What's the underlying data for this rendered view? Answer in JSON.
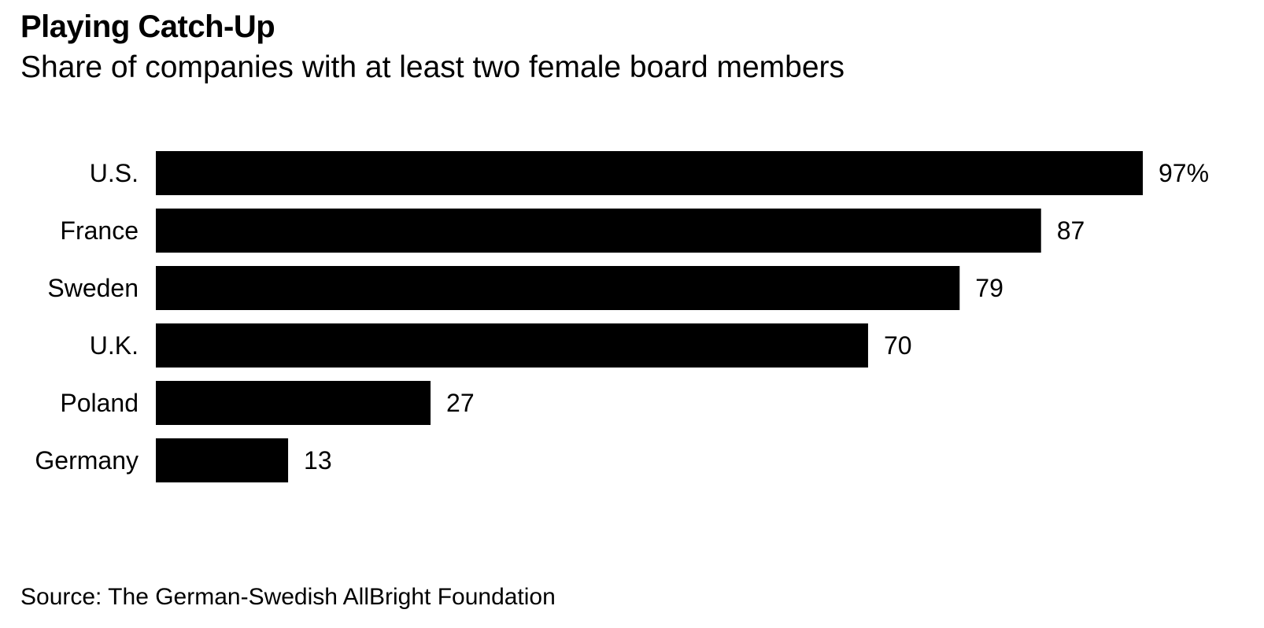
{
  "title": "Playing Catch-Up",
  "subtitle": "Share of companies with at least two female board members",
  "source": "Source: The German-Swedish AllBright Foundation",
  "colors": {
    "bar": "#000000",
    "background": "#ffffff",
    "text": "#000000"
  },
  "chart_data": {
    "type": "bar",
    "orientation": "horizontal",
    "categories": [
      "U.S.",
      "France",
      "Sweden",
      "U.K.",
      "Poland",
      "Germany"
    ],
    "values": [
      97,
      87,
      79,
      70,
      27,
      13
    ],
    "value_labels": [
      "97%",
      "87",
      "79",
      "70",
      "27",
      "13"
    ],
    "unit": "%",
    "title": "Playing Catch-Up",
    "subtitle": "Share of companies with at least two female board members",
    "xlim": [
      0,
      97
    ],
    "grid": false,
    "legend": "none"
  }
}
